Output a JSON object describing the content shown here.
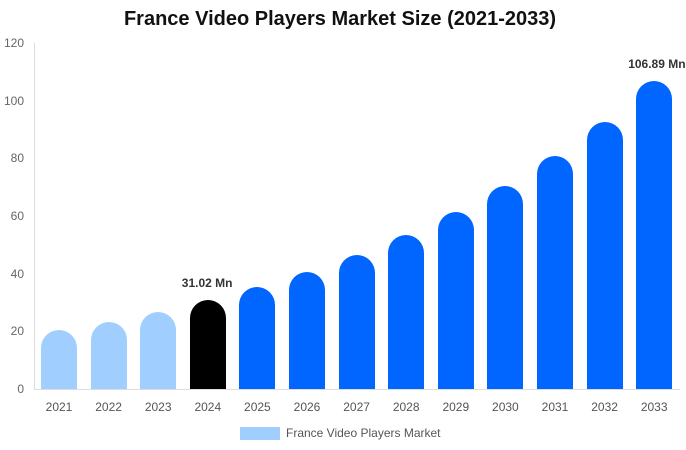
{
  "chart_data": {
    "type": "bar",
    "title": "France Video Players Market Size (2021-2033)",
    "xlabel": "",
    "ylabel": "",
    "ylim": [
      0,
      120
    ],
    "yticks": [
      0,
      20,
      40,
      60,
      80,
      100,
      120
    ],
    "grid": false,
    "legend_position": "bottom",
    "categories": [
      "2021",
      "2022",
      "2023",
      "2024",
      "2025",
      "2026",
      "2027",
      "2028",
      "2029",
      "2030",
      "2031",
      "2032",
      "2033"
    ],
    "series": [
      {
        "name": "France Video Players Market",
        "values": [
          20.5,
          23.2,
          26.7,
          31.02,
          35.4,
          40.6,
          46.5,
          53.4,
          61.4,
          70.4,
          80.8,
          92.6,
          106.89
        ]
      }
    ],
    "bar_colors": [
      "#a0cfff",
      "#a0cfff",
      "#a0cfff",
      "#000000",
      "#0066ff",
      "#0066ff",
      "#0066ff",
      "#0066ff",
      "#0066ff",
      "#0066ff",
      "#0066ff",
      "#0066ff",
      "#0066ff"
    ],
    "annotations": [
      {
        "category": "2024",
        "text": "31.02 Mn"
      },
      {
        "category": "2033",
        "text": "106.89 Mn"
      }
    ]
  },
  "legend": {
    "label": "France Video Players Market",
    "color": "#a0cfff"
  }
}
